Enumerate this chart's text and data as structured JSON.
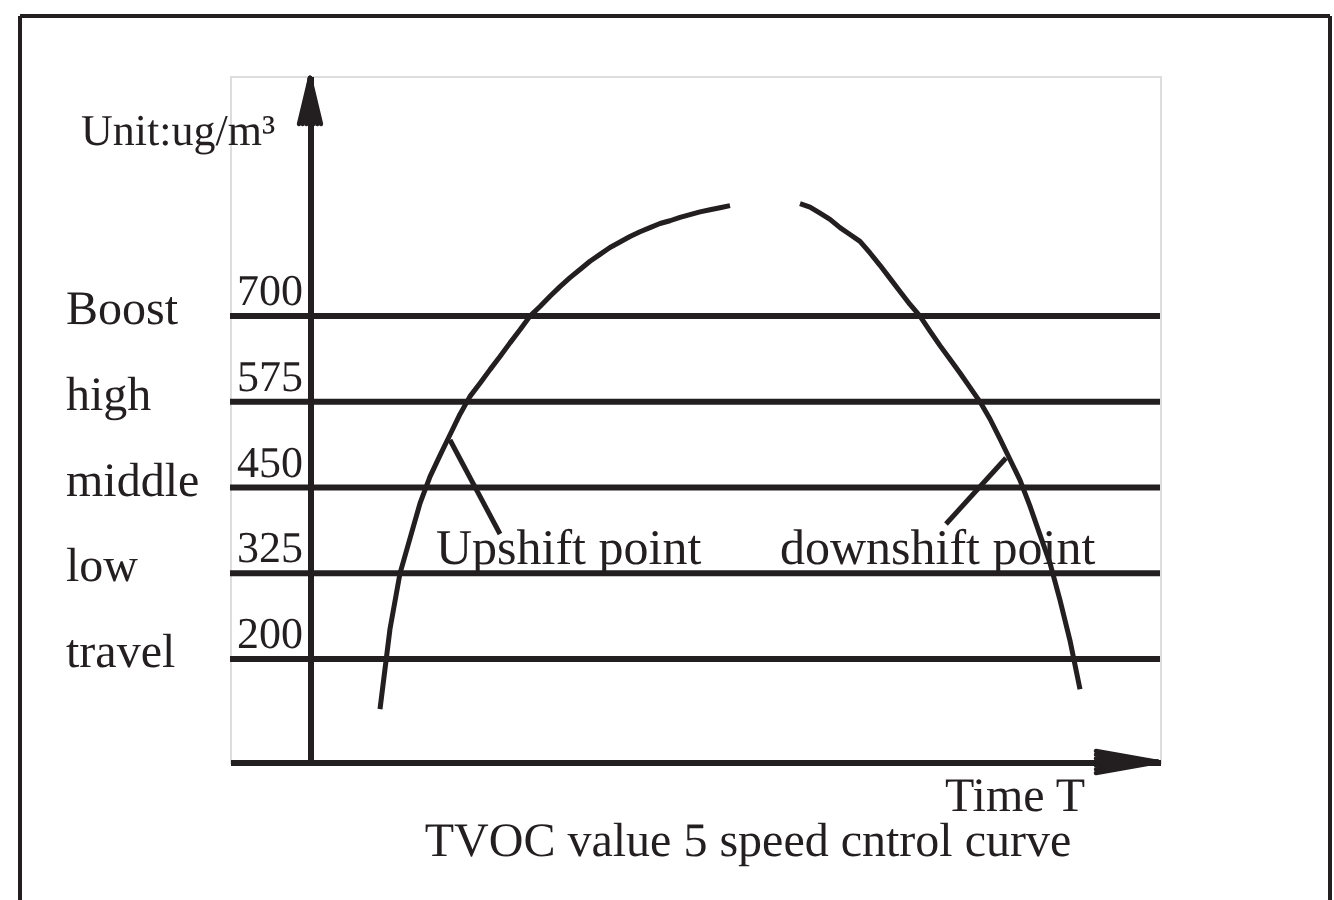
{
  "chart_data": {
    "type": "line",
    "title": "TVOC value 5 speed cntrol curve",
    "xlabel": "Time T",
    "ylabel": "Unit:ug/m³",
    "categories": [
      null,
      null,
      null,
      null,
      null,
      null,
      null,
      null,
      null,
      null,
      null,
      null,
      null,
      null,
      null,
      null,
      null,
      null,
      null,
      null,
      null,
      null,
      null,
      null,
      null,
      null,
      null,
      null,
      null,
      null,
      null,
      null,
      null,
      null,
      null,
      null,
      null,
      null,
      null,
      null,
      null,
      null,
      null,
      null,
      null,
      null,
      null,
      null,
      null,
      null,
      null,
      null,
      null,
      null,
      null,
      null,
      null,
      null,
      null,
      null,
      null,
      null,
      null,
      null,
      null,
      null,
      null,
      null,
      null,
      null,
      null,
      null,
      null,
      null,
      null,
      null,
      null,
      null,
      null,
      null,
      null,
      null,
      null,
      null,
      null,
      null,
      null,
      null,
      null,
      null,
      null,
      null,
      null,
      null
    ],
    "series": [
      {
        "color": "#231f20",
        "values": [
          null,
          null,
          null,
          null,
          null,
          null,
          null,
          null,
          null,
          null,
          null,
          null,
          null,
          null,
          null,
          127,
          244,
          325,
          376,
          427,
          466,
          497,
          527,
          557,
          583,
          602,
          622,
          641,
          661,
          680,
          700,
          714,
          729,
          743,
          756,
          768,
          780,
          790,
          800,
          808,
          816,
          823,
          829,
          835,
          839,
          844,
          848,
          852,
          855,
          858,
          861,
          null,
          null,
          null,
          null,
          null,
          null,
          null,
          null,
          null,
          null,
          null,
          null,
          null,
          null,
          null,
          null,
          null,
          null,
          null,
          null,
          null,
          null,
          null,
          null,
          null,
          null,
          null,
          null,
          null,
          null,
          null,
          null,
          null,
          null,
          null,
          null,
          null,
          null,
          null,
          null,
          null,
          null,
          null
        ]
      },
      {
        "color": "#231f20",
        "values": [
          null,
          null,
          null,
          null,
          null,
          null,
          null,
          null,
          null,
          null,
          null,
          null,
          null,
          null,
          null,
          null,
          null,
          null,
          null,
          null,
          null,
          null,
          null,
          null,
          null,
          null,
          null,
          null,
          null,
          null,
          null,
          null,
          null,
          null,
          null,
          null,
          null,
          null,
          null,
          null,
          null,
          null,
          null,
          null,
          null,
          null,
          null,
          null,
          null,
          null,
          null,
          null,
          null,
          null,
          null,
          null,
          null,
          864,
          859,
          850,
          841,
          829,
          819,
          809,
          792,
          774,
          755,
          736,
          717,
          700,
          678,
          657,
          637,
          617,
          596,
          575,
          550,
          521,
          491,
          461,
          423,
          381,
          340,
          286,
          227,
          156,
          null,
          null,
          null,
          null,
          null,
          null,
          null,
          null
        ]
      }
    ],
    "ylim": [
      50,
      1050
    ],
    "yticks": [
      200,
      325,
      450,
      575,
      700
    ],
    "tick_labels": "y",
    "ref_lines": [
      {
        "axis": "y",
        "value": 700,
        "label": "Boost"
      },
      {
        "axis": "y",
        "value": 575,
        "label": "high"
      },
      {
        "axis": "y",
        "value": 450,
        "label": "middle"
      },
      {
        "axis": "y",
        "value": 325,
        "label": "low"
      },
      {
        "axis": "y",
        "value": 200,
        "label": "travel"
      }
    ],
    "annotations": [
      "Upshift point",
      "downshift point"
    ]
  }
}
